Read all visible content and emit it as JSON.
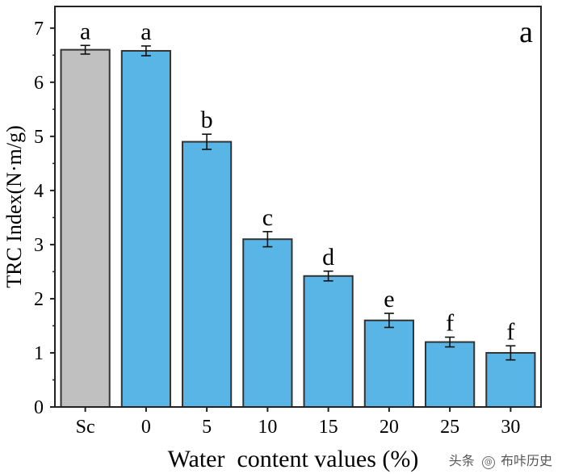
{
  "chart_data": {
    "type": "bar",
    "panel_label": "a",
    "xlabel": "Water  content values (%)",
    "ylabel": "TRC Index(N·m/g)",
    "ylim": [
      0,
      7.4
    ],
    "yticks": [
      "0",
      "1",
      "2",
      "3",
      "4",
      "5",
      "6",
      "7"
    ],
    "grid": false,
    "categories": [
      "Sc",
      "0",
      "5",
      "10",
      "15",
      "20",
      "25",
      "30"
    ],
    "values": [
      6.6,
      6.58,
      4.9,
      3.1,
      2.42,
      1.6,
      1.2,
      1.0
    ],
    "errors": [
      0.08,
      0.09,
      0.14,
      0.14,
      0.09,
      0.13,
      0.09,
      0.13
    ],
    "significance_letters": [
      "a",
      "a",
      "b",
      "c",
      "d",
      "e",
      "f",
      "f"
    ],
    "colors": {
      "control": "#c0c0c0",
      "treatment": "#58b5e6",
      "edge": "#333333"
    }
  },
  "watermark": {
    "prefix": "头条",
    "at": "@",
    "name": "布咔历史"
  }
}
